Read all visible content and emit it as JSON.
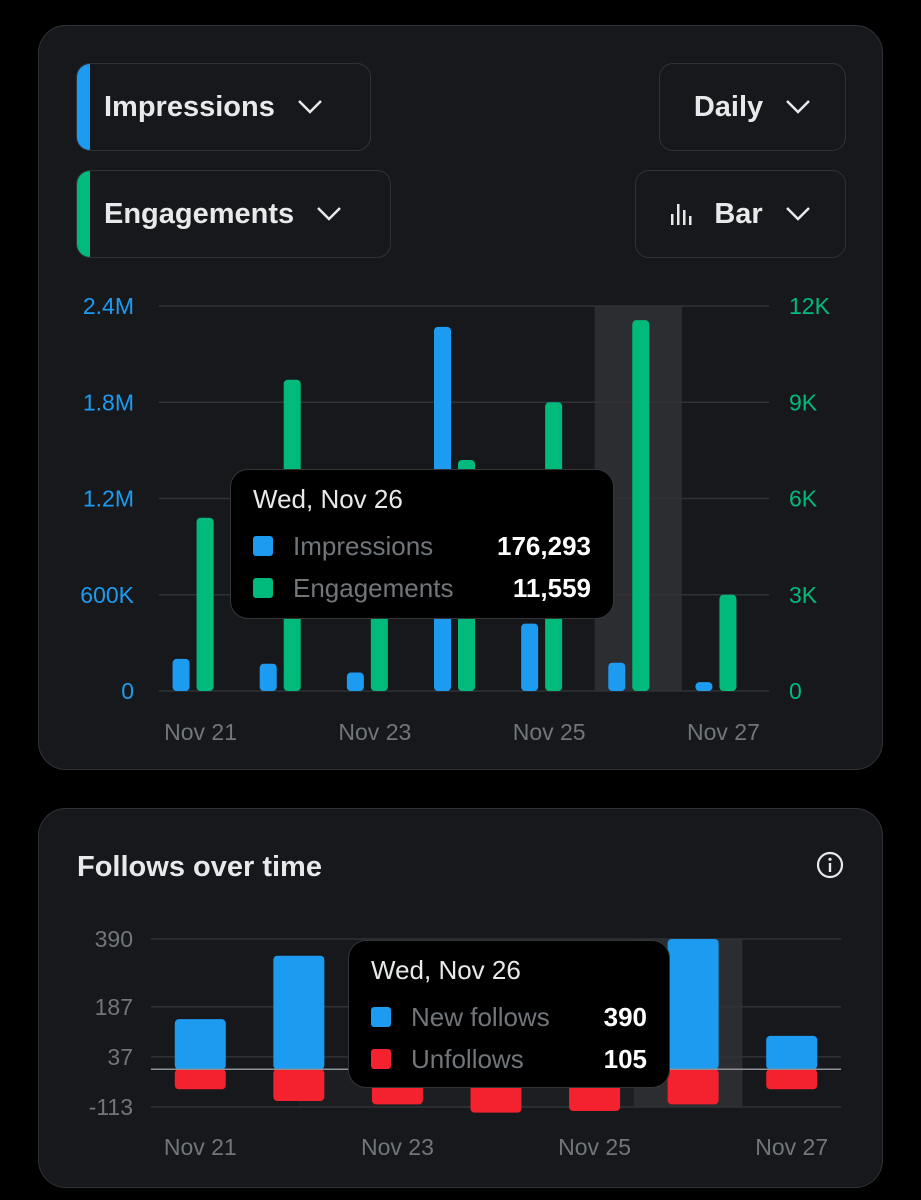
{
  "metrics_card": {
    "metric_primary": {
      "label": "Impressions",
      "accent": "#1d9bf0"
    },
    "metric_secondary": {
      "label": "Engagements",
      "accent": "#00ba7c"
    },
    "period": {
      "label": "Daily"
    },
    "chart_type": {
      "label": "Bar",
      "icon": "bar-chart-icon"
    },
    "tooltip": {
      "date": "Wed, Nov 26",
      "rows": [
        {
          "name": "Impressions",
          "value": "176,293",
          "color": "#1d9bf0"
        },
        {
          "name": "Engagements",
          "value": "11,559",
          "color": "#00ba7c"
        }
      ]
    }
  },
  "follows_card": {
    "title": "Follows over time",
    "info_icon": "info-icon",
    "tooltip": {
      "date": "Wed, Nov 26",
      "rows": [
        {
          "name": "New follows",
          "value": "390",
          "color": "#1d9bf0"
        },
        {
          "name": "Unfollows",
          "value": "105",
          "color": "#f4212e"
        }
      ]
    }
  },
  "chart_data": [
    {
      "type": "bar",
      "title": "",
      "categories": [
        "Nov 21",
        "Nov 22",
        "Nov 23",
        "Nov 24",
        "Nov 25",
        "Nov 26",
        "Nov 27"
      ],
      "x_tick_labels": [
        "Nov 21",
        "Nov 23",
        "Nov 25",
        "Nov 27"
      ],
      "series": [
        {
          "name": "Impressions",
          "axis": "left",
          "color": "#1d9bf0",
          "values": [
            200000,
            170000,
            115000,
            2270000,
            420000,
            176293,
            55000
          ]
        },
        {
          "name": "Engagements",
          "axis": "right",
          "color": "#00ba7c",
          "values": [
            5400,
            9700,
            5700,
            7200,
            9000,
            11559,
            3000
          ]
        }
      ],
      "y_left": {
        "ticks": [
          "0",
          "600K",
          "1.2M",
          "1.8M",
          "2.4M"
        ],
        "ylim": [
          0,
          2400000
        ],
        "color": "#1d9bf0"
      },
      "y_right": {
        "ticks": [
          "0",
          "3K",
          "6K",
          "9K",
          "12K"
        ],
        "ylim": [
          0,
          12000
        ],
        "color": "#00ba7c"
      },
      "highlighted_category": "Nov 26",
      "grid": true
    },
    {
      "type": "bar",
      "title": "Follows over time",
      "categories": [
        "Nov 21",
        "Nov 22",
        "Nov 23",
        "Nov 24",
        "Nov 25",
        "Nov 26",
        "Nov 27"
      ],
      "x_tick_labels": [
        "Nov 21",
        "Nov 23",
        "Nov 25",
        "Nov 27"
      ],
      "series": [
        {
          "name": "New follows",
          "color": "#1d9bf0",
          "values": [
            150,
            340,
            0,
            0,
            0,
            390,
            100
          ]
        },
        {
          "name": "Unfollows",
          "color": "#f4212e",
          "values": [
            -60,
            -95,
            -105,
            -130,
            -125,
            -105,
            -60
          ]
        }
      ],
      "y_axis": {
        "ticks": [
          "-113",
          "37",
          "187",
          "390"
        ],
        "tick_values": [
          -113,
          37,
          187,
          390
        ],
        "ylim": [
          -113,
          390
        ]
      },
      "highlighted_category": "Nov 26",
      "grid": true
    }
  ]
}
